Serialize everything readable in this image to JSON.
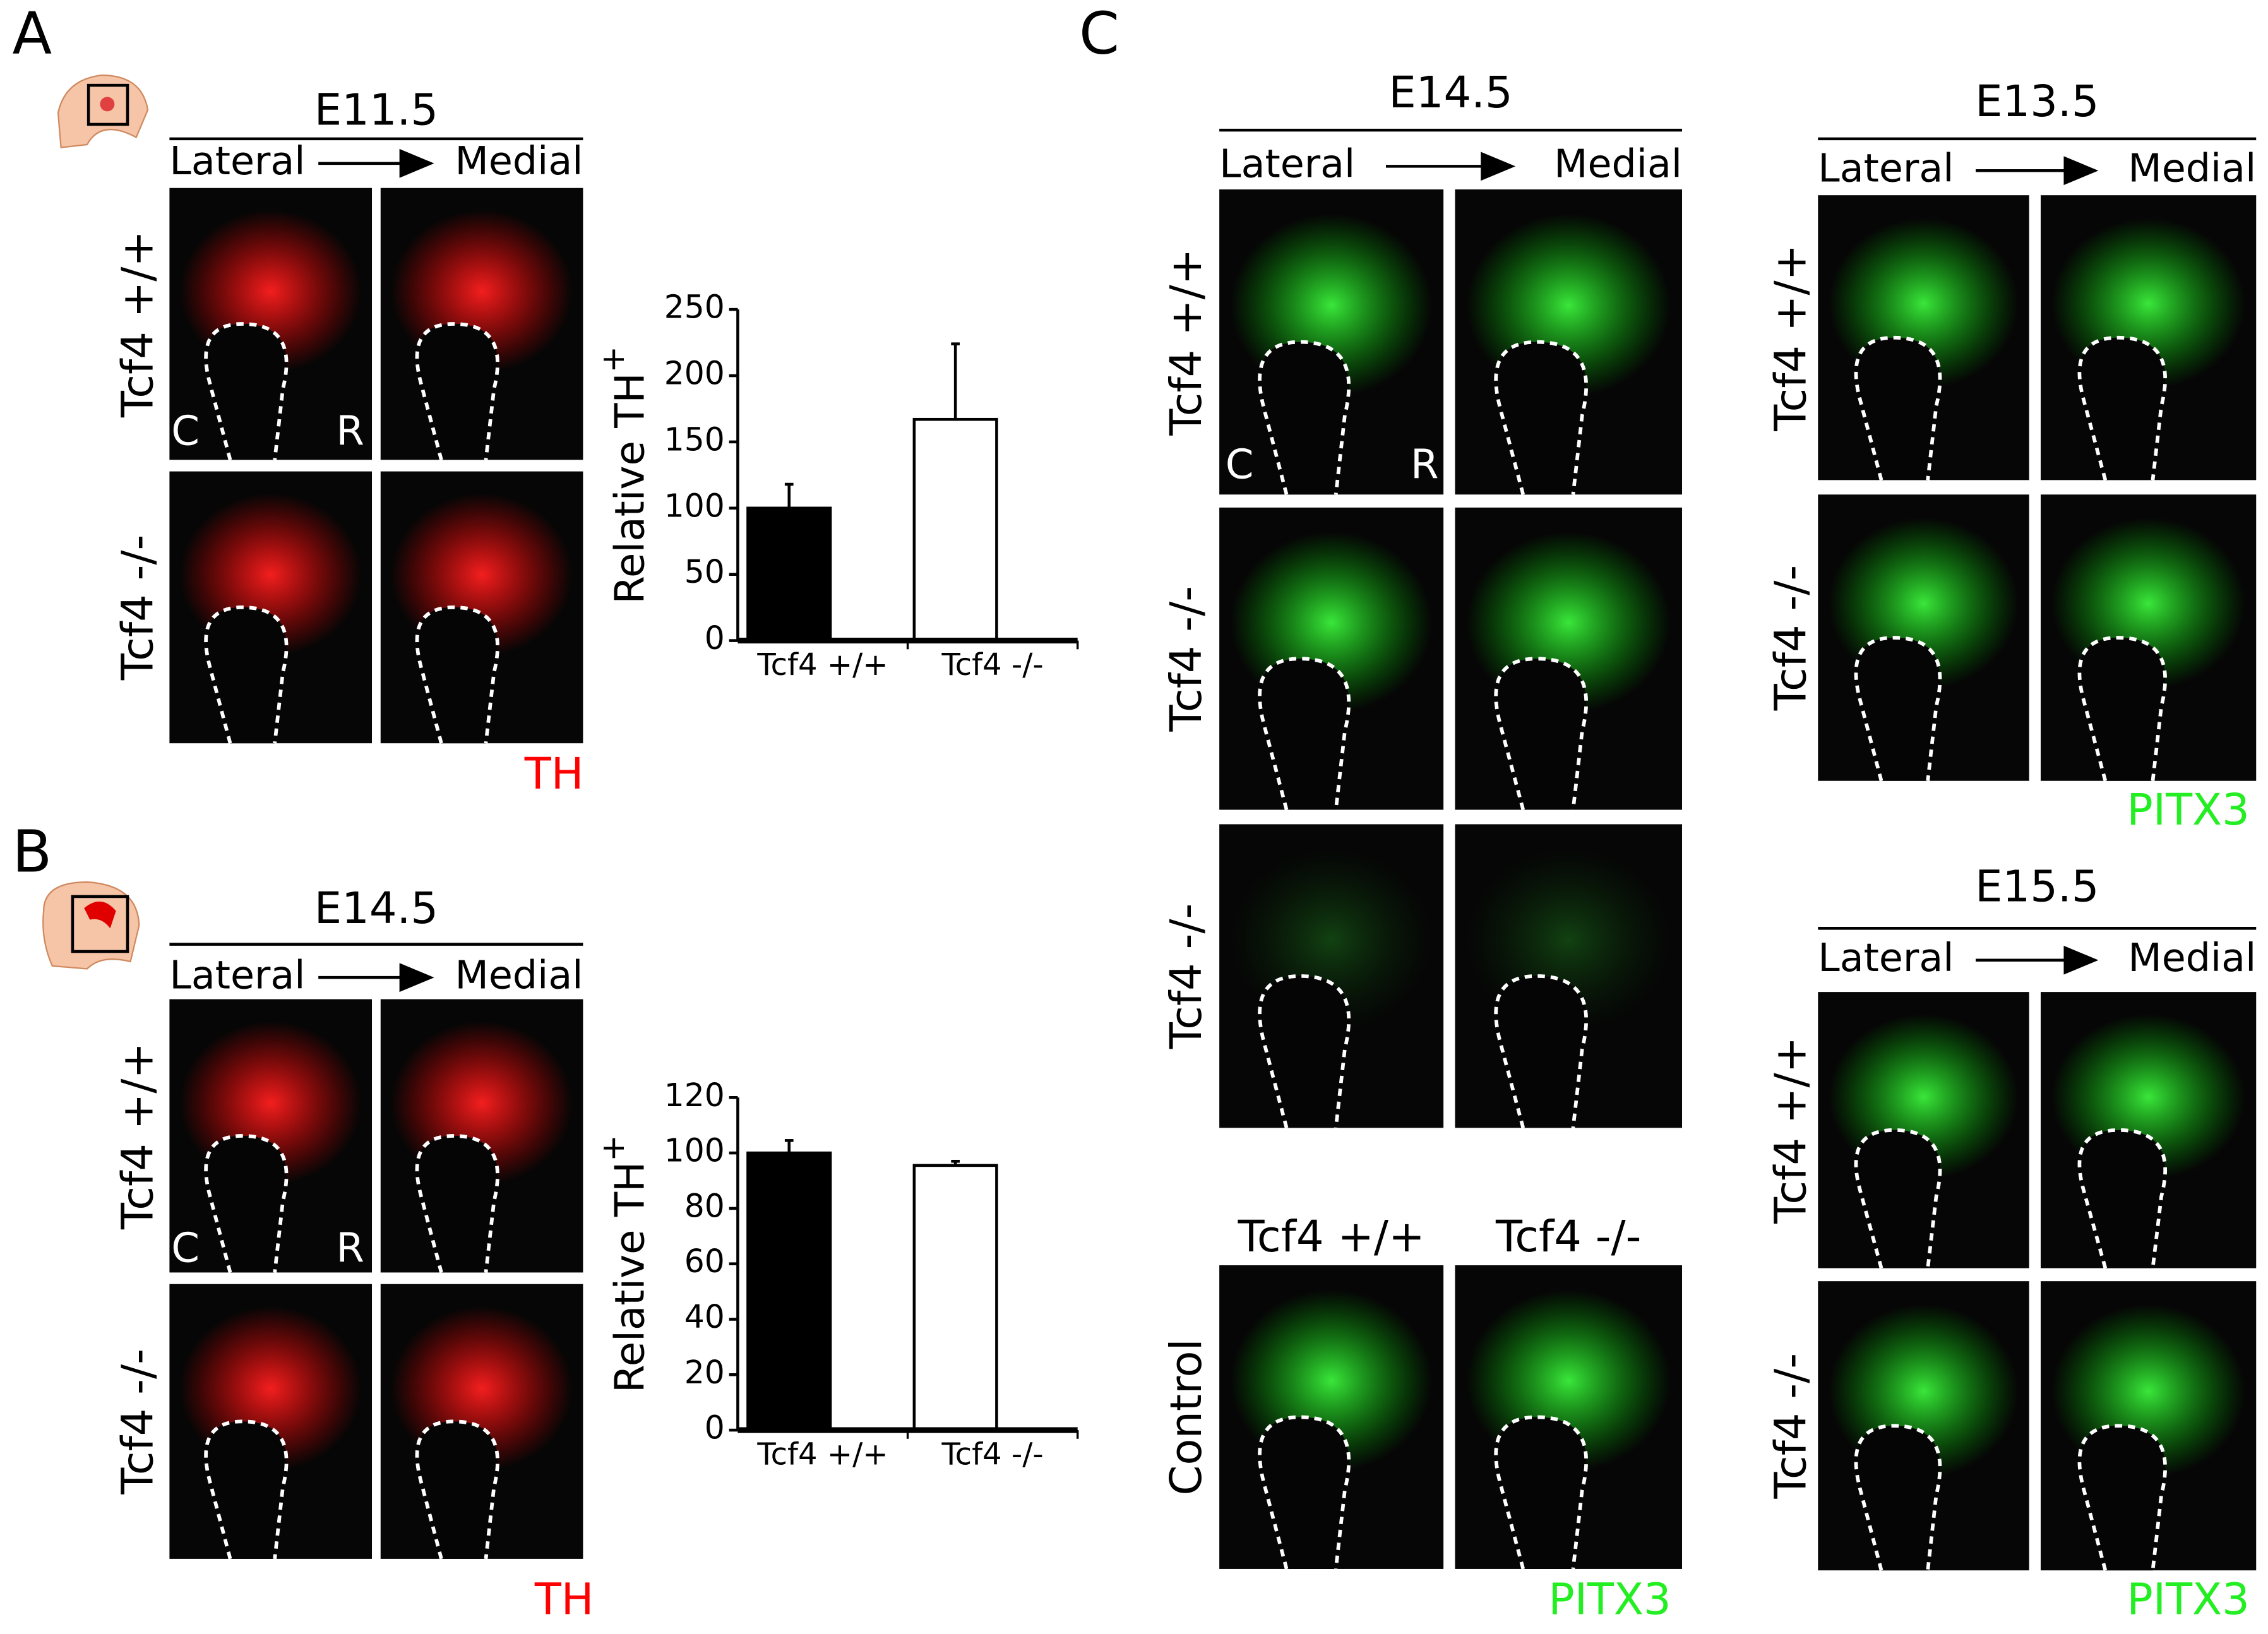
{
  "panels": {
    "A": {
      "letter": "A",
      "stage": "E11.5",
      "lateral": "Lateral",
      "medial": "Medial",
      "rows": [
        "Tcf4 +/+",
        "Tcf4 -/-"
      ],
      "corner_left": "C",
      "corner_right": "R",
      "marker": "TH"
    },
    "B": {
      "letter": "B",
      "stage": "E14.5",
      "lateral": "Lateral",
      "medial": "Medial",
      "rows": [
        "Tcf4 +/+",
        "Tcf4 -/-"
      ],
      "corner_left": "C",
      "corner_right": "R",
      "marker": "TH"
    },
    "C": {
      "letter": "C",
      "groups": [
        {
          "stage": "E14.5",
          "lateral": "Lateral",
          "medial": "Medial",
          "rows": [
            "Tcf4 +/+",
            "Tcf4 -/-",
            "Tcf4 -/-"
          ],
          "corner_left": "C",
          "corner_right": "R"
        },
        {
          "stage": "E13.5",
          "lateral": "Lateral",
          "medial": "Medial",
          "rows": [
            "Tcf4 +/+",
            "Tcf4 -/-"
          ],
          "marker": "PITX3"
        },
        {
          "stage": "E15.5",
          "lateral": "Lateral",
          "medial": "Medial",
          "rows": [
            "Tcf4 +/+",
            "Tcf4 -/-"
          ],
          "marker": "PITX3"
        }
      ],
      "control": {
        "columns": [
          "Tcf4 +/+",
          "Tcf4 -/-"
        ],
        "row": "Control",
        "marker": "PITX3"
      }
    }
  },
  "chart_data": [
    {
      "type": "bar",
      "categories": [
        "Tcf4 +/+",
        "Tcf4 -/-"
      ],
      "values": [
        100,
        167
      ],
      "errors": [
        18,
        57
      ],
      "colors": [
        "#000000",
        "#ffffff"
      ],
      "ylim": [
        0,
        250
      ],
      "yticks": [
        0,
        50,
        100,
        150,
        200,
        250
      ],
      "y_label": "Relative TH",
      "y_label_sup": "+"
    },
    {
      "type": "bar",
      "categories": [
        "Tcf4 +/+",
        "Tcf4 -/-"
      ],
      "values": [
        100,
        95.5
      ],
      "errors": [
        4.5,
        1.5
      ],
      "colors": [
        "#000000",
        "#ffffff"
      ],
      "ylim": [
        0,
        120
      ],
      "yticks": [
        0,
        20,
        40,
        60,
        80,
        100,
        120
      ],
      "y_label": "Relative TH",
      "y_label_sup": "+"
    }
  ]
}
